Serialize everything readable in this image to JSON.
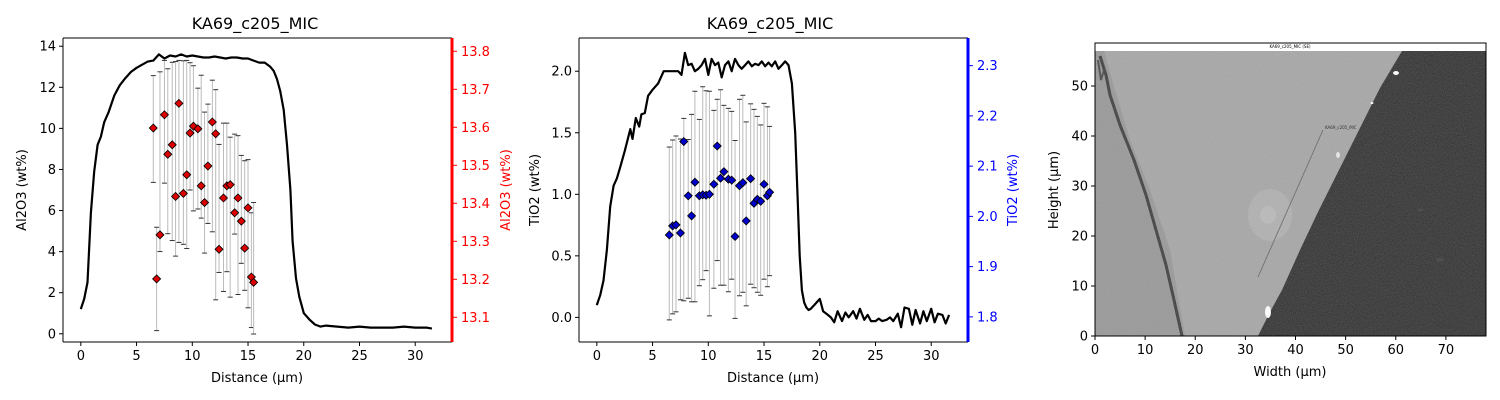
{
  "chart_data": [
    {
      "type": "line+scatter",
      "title": "KA69_c205_MIC",
      "xlabel": "Distance (µm)",
      "ylabel": "Al2O3 (wt%)",
      "ylabel_right": "Al2O3 (wt%)",
      "xlim": [
        -1.6,
        33.3
      ],
      "ylim": [
        -0.4,
        14.4
      ],
      "ylim_right": [
        13.035,
        13.835
      ],
      "xticks": [
        0,
        5,
        10,
        15,
        20,
        25,
        30
      ],
      "yticks": [
        0,
        2,
        4,
        6,
        8,
        10,
        12,
        14
      ],
      "yticks_right": [
        13.1,
        13.2,
        13.3,
        13.4,
        13.5,
        13.6,
        13.7,
        13.8
      ],
      "right_axis_color": "#ff0000",
      "marker_color": "#dd0000",
      "line_color": "#000000",
      "profile": {
        "x": [
          0,
          0.3,
          0.6,
          0.9,
          1.2,
          1.5,
          1.8,
          2.1,
          2.5,
          3,
          3.5,
          4,
          4.5,
          5,
          5.5,
          6,
          6.5,
          7,
          7.5,
          8,
          8.5,
          9,
          9.5,
          10,
          10.5,
          11,
          11.5,
          12,
          12.5,
          13,
          13.5,
          14,
          14.5,
          15,
          15.5,
          16,
          16.5,
          17,
          17.3,
          17.6,
          17.9,
          18.2,
          18.5,
          18.8,
          19,
          19.3,
          19.6,
          20,
          20.5,
          21,
          21.5,
          22,
          23,
          24,
          25,
          26,
          27,
          28,
          29,
          30,
          31,
          31.5
        ],
        "y": [
          1.2,
          1.7,
          2.5,
          5.9,
          7.9,
          9.2,
          9.6,
          10.3,
          10.8,
          11.6,
          12.1,
          12.45,
          12.75,
          12.95,
          13.1,
          13.25,
          13.3,
          13.6,
          13.4,
          13.55,
          13.5,
          13.6,
          13.5,
          13.55,
          13.5,
          13.45,
          13.45,
          13.5,
          13.45,
          13.4,
          13.45,
          13.45,
          13.4,
          13.4,
          13.3,
          13.2,
          13.2,
          13.0,
          12.8,
          12.4,
          11.8,
          10.9,
          9.2,
          7.0,
          4.5,
          2.7,
          1.8,
          1.0,
          0.7,
          0.45,
          0.35,
          0.4,
          0.35,
          0.3,
          0.35,
          0.3,
          0.3,
          0.3,
          0.35,
          0.3,
          0.3,
          0.25
        ]
      },
      "points": {
        "x": [
          6.5,
          6.8,
          7.1,
          7.5,
          7.8,
          8.2,
          8.5,
          8.8,
          9.2,
          9.5,
          9.8,
          10.1,
          10.5,
          10.8,
          11.1,
          11.4,
          11.8,
          12.1,
          12.4,
          12.8,
          13.1,
          13.4,
          13.8,
          14.1,
          14.4,
          14.7,
          15.0,
          15.3,
          15.5
        ],
        "y": [
          13.598,
          13.201,
          13.317,
          13.633,
          13.529,
          13.554,
          13.418,
          13.663,
          13.426,
          13.475,
          13.585,
          13.603,
          13.596,
          13.446,
          13.402,
          13.498,
          13.614,
          13.583,
          13.279,
          13.414,
          13.446,
          13.449,
          13.375,
          13.414,
          13.353,
          13.282,
          13.388,
          13.206,
          13.192
        ],
        "err_low": [
          13.455,
          13.065,
          13.273,
          13.453,
          13.32,
          13.302,
          13.261,
          13.297,
          13.292,
          13.281,
          13.435,
          13.38,
          13.385,
          13.361,
          13.269,
          13.347,
          13.325,
          13.146,
          13.218,
          13.168,
          13.22,
          13.153,
          13.319,
          13.16,
          13.242,
          13.171,
          13.125,
          13.073,
          13.056
        ],
        "err_high": [
          13.736,
          13.337,
          13.746,
          13.776,
          13.754,
          13.771,
          13.773,
          13.776,
          13.775,
          13.776,
          13.77,
          13.762,
          13.703,
          13.737,
          13.64,
          13.661,
          13.724,
          13.699,
          13.555,
          13.611,
          13.611,
          13.574,
          13.582,
          13.578,
          13.526,
          13.512,
          13.515,
          13.375,
          13.402
        ]
      }
    },
    {
      "type": "line+scatter",
      "title": "KA69_c205_MIC",
      "xlabel": "Distance (µm)",
      "ylabel": "TiO2 (wt%)",
      "ylabel_right": "TiO2 (wt%)",
      "xlim": [
        -1.6,
        33.3
      ],
      "ylim": [
        -0.2,
        2.27
      ],
      "ylim_right": [
        1.75,
        2.355
      ],
      "xticks": [
        0,
        5,
        10,
        15,
        20,
        25,
        30
      ],
      "yticks": [
        0.0,
        0.5,
        1.0,
        1.5,
        2.0
      ],
      "yticks_right": [
        1.8,
        1.9,
        2.0,
        2.1,
        2.2,
        2.3
      ],
      "right_axis_color": "#0000ff",
      "marker_color": "#0000cc",
      "line_color": "#000000",
      "profile": {
        "x": [
          0,
          0.3,
          0.6,
          0.9,
          1.2,
          1.5,
          1.8,
          2.1,
          2.5,
          3,
          3.2,
          3.5,
          3.8,
          4,
          4.3,
          4.6,
          5,
          5.5,
          6,
          6.5,
          7,
          7.3,
          7.6,
          7.9,
          8.2,
          8.5,
          8.8,
          9.1,
          9.4,
          9.7,
          10,
          10.3,
          10.6,
          10.9,
          11.2,
          11.5,
          11.8,
          12.1,
          12.4,
          12.7,
          13,
          13.3,
          13.6,
          13.9,
          14.2,
          14.5,
          14.8,
          15.1,
          15.4,
          15.7,
          16,
          16.3,
          16.6,
          16.9,
          17.2,
          17.5,
          17.8,
          18,
          18.2,
          18.4,
          18.6,
          18.8,
          19,
          19.2,
          19.5,
          20,
          20.3,
          20.6,
          21,
          21.3,
          21.6,
          22,
          22.3,
          22.6,
          23,
          23.3,
          23.6,
          24,
          24.3,
          24.6,
          25,
          25.3,
          25.6,
          26,
          26.3,
          26.6,
          27,
          27.3,
          27.6,
          28,
          28.3,
          28.6,
          29,
          29.3,
          29.6,
          30,
          30.3,
          30.6,
          31,
          31.3,
          31.6
        ],
        "y": [
          0.1,
          0.18,
          0.3,
          0.55,
          0.9,
          1.07,
          1.13,
          1.22,
          1.35,
          1.53,
          1.45,
          1.62,
          1.55,
          1.65,
          1.66,
          1.8,
          1.85,
          1.9,
          2.0,
          2.0,
          2.0,
          2.0,
          1.97,
          2.15,
          2.05,
          2.06,
          2.0,
          2.02,
          2.05,
          2.1,
          1.97,
          2.1,
          2.05,
          2.07,
          1.95,
          2.05,
          2.08,
          2.0,
          2.1,
          2.05,
          2.02,
          2.05,
          2.08,
          2.04,
          2.06,
          2.05,
          2.08,
          2.04,
          2.07,
          2.04,
          2.08,
          2.02,
          2.05,
          2.08,
          2.05,
          1.9,
          1.5,
          1.0,
          0.5,
          0.22,
          0.12,
          0.08,
          0.06,
          0.07,
          0.1,
          0.15,
          0.05,
          0.03,
          0.0,
          -0.04,
          0.05,
          -0.03,
          0.04,
          0.0,
          0.05,
          -0.01,
          0.07,
          -0.02,
          0.02,
          -0.03,
          -0.03,
          -0.01,
          -0.03,
          -0.02,
          0.0,
          -0.03,
          0.03,
          -0.08,
          0.08,
          0.07,
          -0.06,
          0.06,
          -0.05,
          0.05,
          -0.03,
          0.07,
          -0.04,
          0.03,
          0.02,
          -0.05,
          0.02
        ]
      },
      "points": {
        "x": [
          6.5,
          6.8,
          7.1,
          7.5,
          7.8,
          8.2,
          8.5,
          8.8,
          9.2,
          9.5,
          9.8,
          10.1,
          10.5,
          10.8,
          11.1,
          11.4,
          11.8,
          12.1,
          12.4,
          12.8,
          13.1,
          13.4,
          13.8,
          14.1,
          14.4,
          14.7,
          15.0,
          15.3,
          15.5
        ],
        "y": [
          1.963,
          1.981,
          1.983,
          1.967,
          2.149,
          2.041,
          2.001,
          2.068,
          2.041,
          2.043,
          2.042,
          2.044,
          2.064,
          2.14,
          2.076,
          2.089,
          2.074,
          2.072,
          1.96,
          2.061,
          2.067,
          1.991,
          2.075,
          2.026,
          2.034,
          2.03,
          2.064,
          2.041,
          2.048
        ],
        "err_low": [
          1.794,
          1.806,
          1.81,
          1.834,
          1.832,
          1.837,
          1.83,
          1.83,
          1.862,
          1.874,
          1.892,
          1.802,
          1.857,
          1.912,
          1.863,
          1.863,
          1.85,
          1.875,
          1.797,
          1.842,
          1.849,
          1.822,
          1.865,
          1.858,
          1.849,
          1.843,
          1.875,
          1.86,
          1.882
        ],
        "err_high": [
          2.138,
          2.152,
          2.16,
          2.154,
          2.195,
          2.153,
          2.203,
          2.249,
          2.193,
          2.258,
          2.25,
          2.249,
          2.211,
          2.233,
          2.252,
          2.221,
          2.215,
          2.209,
          2.151,
          2.233,
          2.241,
          2.188,
          2.224,
          2.213,
          2.199,
          2.182,
          2.225,
          2.218,
          2.179
        ]
      }
    },
    {
      "type": "image",
      "title": "KA69_c205_MIC (SE)",
      "xlabel": "Width (µm)",
      "ylabel": "Height (µm)",
      "xlim": [
        0,
        78
      ],
      "ylim": [
        0,
        57
      ],
      "xticks": [
        0,
        10,
        20,
        30,
        40,
        50,
        60,
        70
      ],
      "yticks": [
        0,
        10,
        20,
        30,
        40,
        50
      ],
      "annotation": "KA69_c205_MIC"
    }
  ]
}
